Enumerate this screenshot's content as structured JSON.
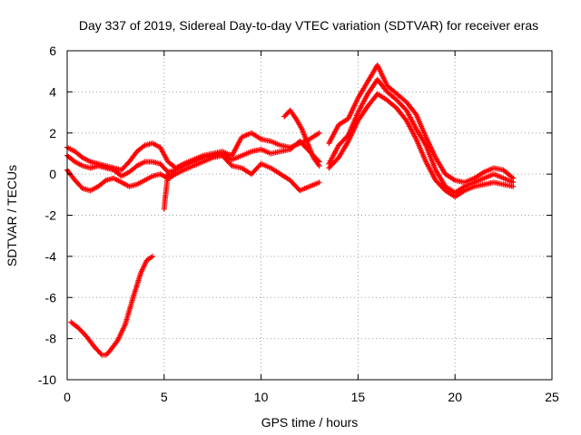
{
  "chart_data": {
    "type": "scatter",
    "title": "Day 337 of 2019, Sidereal Day-to-day VTEC variation (SDTVAR) for receiver eras",
    "xlabel": "GPS time / hours",
    "ylabel": "SDTVAR / TECUs",
    "xlim": [
      0,
      25
    ],
    "ylim": [
      -10,
      6
    ],
    "xticks": [
      0,
      5,
      10,
      15,
      20,
      25
    ],
    "yticks": [
      -10,
      -8,
      -6,
      -4,
      -2,
      0,
      2,
      4,
      6
    ],
    "grid": true,
    "marker": "+",
    "color": "#ff0000",
    "series": [
      {
        "name": "track-1",
        "x": [
          0.0,
          0.4,
          0.8,
          1.2,
          1.6,
          2.0,
          2.4,
          2.8,
          3.2,
          3.6,
          4.0,
          4.4,
          4.8,
          5.2,
          5.6,
          6.0,
          6.5,
          7.0,
          7.5,
          8.0,
          8.5,
          9.0,
          9.5,
          10.0,
          10.5,
          11.0,
          11.5,
          12.0,
          12.5,
          13.0
        ],
        "y": [
          1.3,
          1.1,
          0.8,
          0.6,
          0.5,
          0.4,
          0.3,
          0.2,
          0.6,
          1.1,
          1.4,
          1.5,
          1.3,
          0.6,
          0.3,
          0.5,
          0.7,
          0.9,
          1.0,
          1.1,
          0.9,
          1.8,
          2.0,
          1.7,
          1.6,
          1.4,
          1.3,
          1.5,
          1.7,
          2.0
        ]
      },
      {
        "name": "track-2",
        "x": [
          0.0,
          0.4,
          0.8,
          1.2,
          1.6,
          2.0,
          2.4,
          2.8,
          3.2,
          3.6,
          4.0,
          4.4,
          4.8,
          5.2,
          5.6,
          6.0,
          6.5,
          7.0,
          7.5,
          8.0,
          8.5,
          9.0,
          9.5,
          10.0,
          10.5,
          11.0,
          11.5,
          12.0,
          12.5,
          13.0
        ],
        "y": [
          0.9,
          0.6,
          0.4,
          0.3,
          0.4,
          0.3,
          0.2,
          -0.1,
          0.1,
          0.4,
          0.6,
          0.6,
          0.5,
          0.1,
          0.2,
          0.4,
          0.6,
          0.8,
          0.9,
          1.0,
          0.7,
          0.9,
          1.1,
          1.2,
          1.0,
          1.1,
          1.2,
          1.6,
          1.1,
          0.6
        ]
      },
      {
        "name": "track-3",
        "x": [
          0.0,
          0.4,
          0.8,
          1.2,
          1.6,
          2.0,
          2.4,
          2.8,
          3.2,
          3.6,
          4.0,
          4.4,
          4.8,
          5.2,
          5.6,
          6.0,
          6.5,
          7.0,
          7.5,
          8.0,
          8.5,
          9.0,
          9.5,
          10.0,
          10.5,
          11.0,
          11.5,
          12.0,
          12.5,
          13.0
        ],
        "y": [
          0.2,
          -0.3,
          -0.7,
          -0.8,
          -0.6,
          -0.3,
          -0.2,
          -0.4,
          -0.6,
          -0.5,
          -0.3,
          -0.1,
          0.0,
          -0.2,
          0.0,
          0.2,
          0.4,
          0.6,
          0.8,
          0.9,
          0.4,
          0.3,
          0.0,
          0.5,
          0.3,
          0.0,
          -0.3,
          -0.8,
          -0.6,
          -0.4
        ]
      },
      {
        "name": "track-4",
        "x": [
          5.0,
          5.05,
          5.1,
          5.15,
          5.2,
          5.3,
          5.5
        ],
        "y": [
          -1.7,
          -1.2,
          -0.8,
          -0.4,
          0.0,
          -0.2,
          0.1
        ]
      },
      {
        "name": "track-5",
        "x": [
          11.2,
          11.5,
          11.8,
          12.1,
          12.4,
          12.7,
          13.0
        ],
        "y": [
          2.8,
          3.1,
          2.7,
          2.2,
          1.5,
          0.8,
          0.4
        ]
      },
      {
        "name": "track-6",
        "x": [
          13.5,
          14.0,
          14.5,
          15.0,
          15.5,
          16.0,
          16.5,
          17.0,
          17.5,
          18.0,
          18.5,
          19.0,
          19.5,
          20.0,
          20.5,
          21.0,
          21.5,
          22.0,
          22.5,
          23.0
        ],
        "y": [
          1.5,
          2.4,
          2.7,
          3.7,
          4.5,
          5.3,
          4.3,
          3.9,
          3.5,
          2.9,
          1.8,
          0.8,
          0.0,
          -0.3,
          -0.4,
          -0.2,
          0.1,
          0.3,
          0.2,
          -0.2
        ]
      },
      {
        "name": "track-7",
        "x": [
          13.5,
          14.0,
          14.5,
          15.0,
          15.5,
          16.0,
          16.5,
          17.0,
          17.5,
          18.0,
          18.5,
          19.0,
          19.5,
          20.0,
          20.5,
          21.0,
          21.5,
          22.0,
          22.5,
          23.0
        ],
        "y": [
          0.5,
          1.4,
          1.9,
          3.0,
          3.9,
          4.6,
          4.0,
          3.6,
          3.1,
          2.2,
          1.4,
          0.2,
          -0.6,
          -0.9,
          -0.6,
          -0.4,
          -0.2,
          0.0,
          -0.2,
          -0.4
        ]
      },
      {
        "name": "track-8",
        "x": [
          13.5,
          14.0,
          14.5,
          15.0,
          15.5,
          16.0,
          16.5,
          17.0,
          17.5,
          18.0,
          18.5,
          19.0,
          19.5,
          20.0,
          20.5,
          21.0,
          21.5,
          22.0,
          22.5,
          23.0
        ],
        "y": [
          0.3,
          0.8,
          1.6,
          2.6,
          3.3,
          3.9,
          3.6,
          3.2,
          2.6,
          1.7,
          0.6,
          -0.3,
          -0.8,
          -1.1,
          -0.8,
          -0.6,
          -0.5,
          -0.4,
          -0.5,
          -0.6
        ]
      },
      {
        "name": "track-9",
        "x": [
          0.2,
          0.6,
          1.0,
          1.4,
          1.8,
          2.0,
          2.2,
          2.6,
          3.0,
          3.4,
          3.8,
          4.1,
          4.4
        ],
        "y": [
          -7.2,
          -7.5,
          -7.9,
          -8.4,
          -8.8,
          -8.8,
          -8.6,
          -8.1,
          -7.3,
          -6.0,
          -4.8,
          -4.2,
          -4.0
        ]
      }
    ]
  }
}
